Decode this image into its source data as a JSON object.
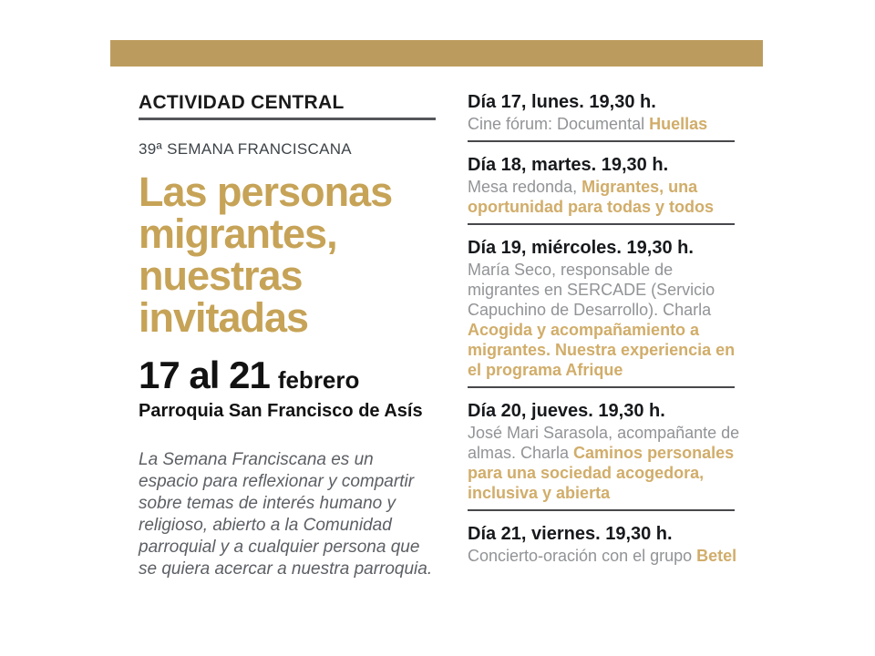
{
  "colors": {
    "gold_bar": "#bc9c5e",
    "gold_title": "#c6a357",
    "gold_highlight": "#d1ad6a",
    "heading_text": "#1b1b1b",
    "kicker_text": "#3e4449",
    "body_gray": "#919396",
    "description_gray": "#5c5f64",
    "divider": "#47484c"
  },
  "left": {
    "section_header": "ACTIVIDAD CENTRAL",
    "kicker": "39ª SEMANA FRANCISCANA",
    "title_lines": [
      "Las personas",
      "migrantes,",
      "nuestras",
      "invitadas"
    ],
    "date_big": "17 al 21",
    "date_small": "febrero",
    "venue": "Parroquia San Francisco de Asís",
    "description_lines": [
      "La Semana Franciscana es un",
      "espacio para reflexionar y compartir",
      "sobre temas de interés humano y",
      "religioso, abierto a la Comunidad",
      "parroquial y a cualquier persona que",
      "se quiera acercar a nuestra parroquia."
    ]
  },
  "schedule": [
    {
      "day": "Día 17, lunes. 19,30 h.",
      "plain": "Cine fórum: Documental ",
      "highlight": "Huellas"
    },
    {
      "day": "Día 18, martes. 19,30 h.",
      "plain": "Mesa redonda, ",
      "highlight": "Migrantes, una oportunidad para todas y todos"
    },
    {
      "day": "Día 19, miércoles. 19,30 h.",
      "plain": "María Seco, responsable de migrantes en SERCADE (Servicio Capuchino de Desarrollo). Charla ",
      "highlight": "Acogida y acompañamiento a migrantes. Nuestra experiencia en el programa Afrique"
    },
    {
      "day": "Día 20, jueves. 19,30 h.",
      "plain": "José Mari Sarasola, acompañante de almas. Charla ",
      "highlight": "Caminos personales para una sociedad acogedora, inclusiva y abierta"
    },
    {
      "day": "Día 21, viernes. 19,30 h.",
      "plain": "Concierto-oración con el grupo ",
      "highlight": "Betel"
    }
  ]
}
